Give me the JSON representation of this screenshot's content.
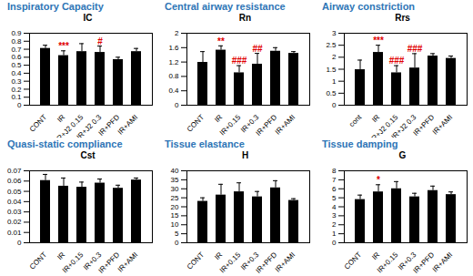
{
  "chart_data": [
    {
      "type": "bar",
      "title": "Inspiratory Capacity",
      "ylabel": "IC",
      "color": "#000000",
      "categories": [
        "CONT",
        "IR",
        "IR+J2 0.15",
        "IR+J2 0.3",
        "IR+PFD",
        "IR+AMI"
      ],
      "values": [
        0.71,
        0.62,
        0.67,
        0.66,
        0.57,
        0.67
      ],
      "errors": [
        0.04,
        0.06,
        0.1,
        0.08,
        0.03,
        0.04
      ],
      "significance": [
        null,
        "***",
        null,
        "#",
        null,
        null
      ],
      "ylim": [
        0,
        0.9
      ],
      "yticks": [
        0,
        0.1,
        0.2,
        0.3,
        0.4,
        0.5,
        0.6,
        0.7,
        0.8,
        0.9
      ]
    },
    {
      "type": "bar",
      "title": "Central airway resistance",
      "ylabel": "Rn",
      "color": "#000000",
      "categories": [
        "CONT",
        "IR",
        "IR+0.15",
        "IR+0.3",
        "IR+PFD",
        "IR+AMI"
      ],
      "values": [
        1.19,
        1.53,
        0.9,
        1.14,
        1.5,
        1.44
      ],
      "errors": [
        0.3,
        0.12,
        0.2,
        0.3,
        0.1,
        0.05
      ],
      "significance": [
        null,
        "**",
        "###",
        "##",
        null,
        null
      ],
      "ylim": [
        0,
        2
      ],
      "yticks": [
        0,
        0.4,
        0.8,
        1.2,
        1.6,
        2
      ]
    },
    {
      "type": "bar",
      "title": "Airway constriction",
      "ylabel": "Rrs",
      "color": "#000000",
      "categories": [
        "cont",
        "IR",
        "IR+J2 0.15",
        "IR+J2 0.3",
        "IR+PFD",
        "IR+AMI"
      ],
      "values": [
        1.48,
        2.2,
        1.35,
        1.55,
        2.05,
        1.95
      ],
      "errors": [
        0.4,
        0.3,
        0.3,
        0.6,
        0.1,
        0.1
      ],
      "significance": [
        null,
        "***",
        "###",
        "###",
        null,
        null
      ],
      "ylim": [
        0,
        3
      ],
      "yticks": [
        0,
        0.5,
        1,
        1.5,
        2,
        2.5,
        3
      ]
    },
    {
      "type": "bar",
      "title": "Quasi-static compliance",
      "ylabel": "Cst",
      "color": "#000000",
      "categories": [
        "CONT",
        "IR",
        "IR+0.15",
        "IR+0.3",
        "IR+PFD",
        "IR+AMI"
      ],
      "values": [
        0.0605,
        0.055,
        0.054,
        0.058,
        0.053,
        0.061
      ],
      "errors": [
        0.006,
        0.008,
        0.005,
        0.004,
        0.003,
        0.002
      ],
      "significance": [
        null,
        null,
        null,
        null,
        null,
        null
      ],
      "ylim": [
        0,
        0.07
      ],
      "yticks": [
        0,
        0.01,
        0.02,
        0.03,
        0.04,
        0.05,
        0.06,
        0.07
      ]
    },
    {
      "type": "bar",
      "title": "Tissue elastance",
      "ylabel": "H",
      "color": "#000000",
      "categories": [
        "CONT",
        "IR",
        "IR+0.15",
        "IR+0.3",
        "IR+PFD",
        "IR+AMI"
      ],
      "values": [
        23,
        26.5,
        28.3,
        25.5,
        30.5,
        23.5
      ],
      "errors": [
        2,
        6,
        5,
        3,
        4,
        1
      ],
      "significance": [
        null,
        null,
        null,
        null,
        null,
        null
      ],
      "ylim": [
        0,
        40
      ],
      "yticks": [
        0,
        5,
        10,
        15,
        20,
        25,
        30,
        35,
        40
      ]
    },
    {
      "type": "bar",
      "title": "Tissue damping",
      "ylabel": "G",
      "color": "#000000",
      "categories": [
        "CONT",
        "IR",
        "IR+0.15",
        "IR+0.3",
        "IR+PFD",
        "IR+AMI"
      ],
      "values": [
        4.8,
        5.65,
        6.0,
        5.1,
        5.8,
        5.35
      ],
      "errors": [
        0.5,
        0.8,
        0.8,
        0.4,
        0.5,
        0.3
      ],
      "significance": [
        null,
        "*",
        null,
        null,
        null,
        null
      ],
      "ylim": [
        0,
        8
      ],
      "yticks": [
        0,
        1,
        2,
        3,
        4,
        5,
        6,
        7,
        8
      ]
    }
  ]
}
